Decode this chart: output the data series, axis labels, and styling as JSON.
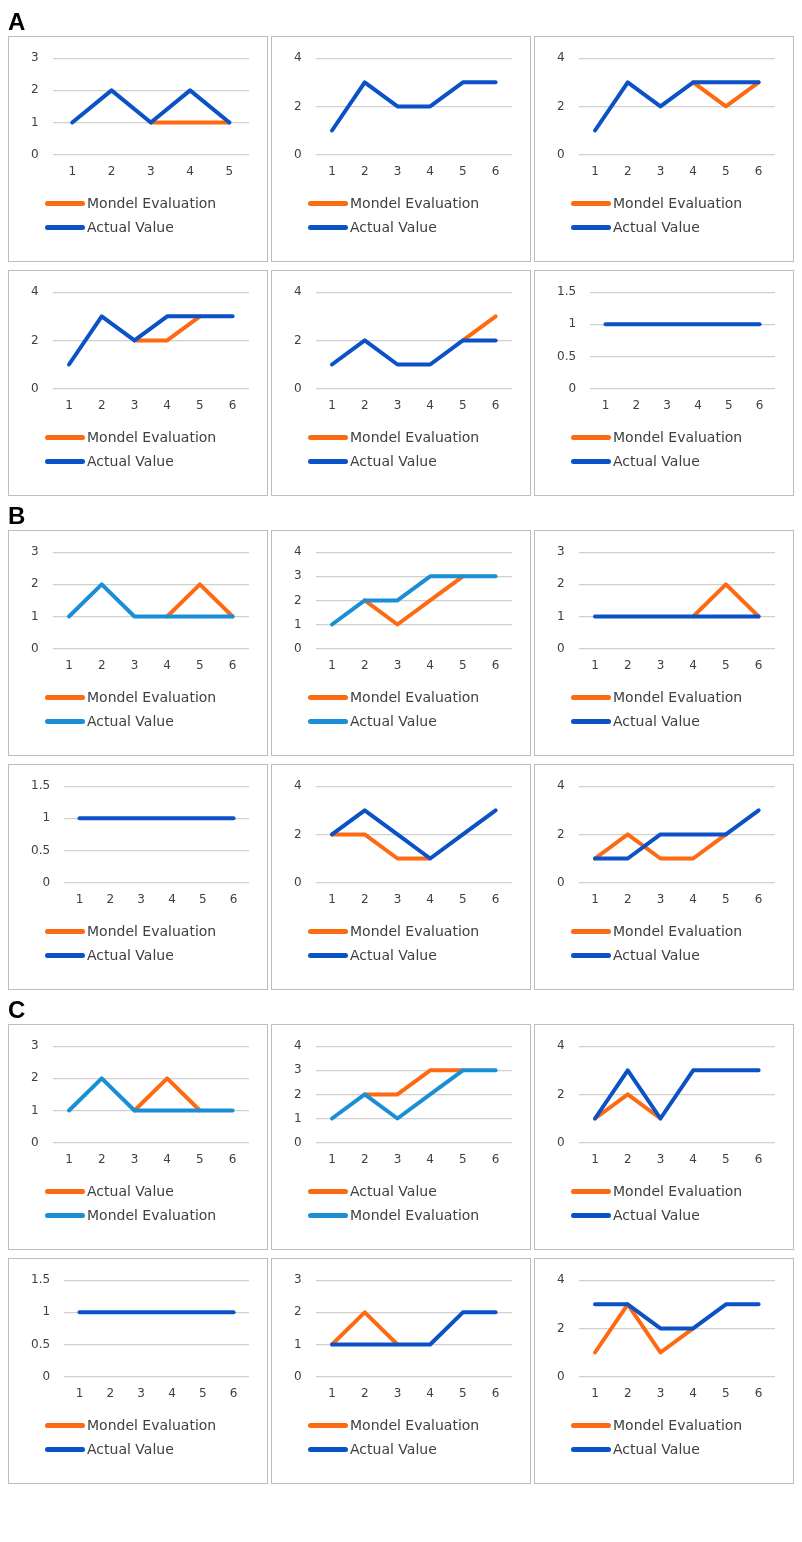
{
  "chart_data": [
    {
      "type": "line",
      "title": "A",
      "categories": [
        "1",
        "2",
        "3",
        "4",
        "5"
      ],
      "ylim": [
        0,
        3
      ],
      "yticks": [
        0,
        1,
        2,
        3
      ],
      "grid": "y",
      "legend": "bottom",
      "series": [
        {
          "name": "Mondel Evaluation",
          "color": "#fe6a12",
          "values": [
            null,
            null,
            1,
            1,
            1
          ]
        },
        {
          "name": "Actual Value",
          "color": "#0a52c6",
          "values": [
            1,
            2,
            1,
            2,
            1
          ]
        }
      ]
    },
    {
      "type": "line",
      "categories": [
        "1",
        "2",
        "3",
        "4",
        "5",
        "6"
      ],
      "ylim": [
        0,
        4
      ],
      "yticks": [
        0,
        2,
        4
      ],
      "grid": "y",
      "legend": "bottom",
      "series": [
        {
          "name": "Mondel Evaluation",
          "color": "#fe6a12",
          "values": [
            null,
            null,
            null,
            null,
            null,
            null
          ]
        },
        {
          "name": "Actual Value",
          "color": "#0a52c6",
          "values": [
            1,
            3,
            2,
            2,
            3,
            3
          ]
        }
      ]
    },
    {
      "type": "line",
      "categories": [
        "1",
        "2",
        "3",
        "4",
        "5",
        "6"
      ],
      "ylim": [
        0,
        4
      ],
      "yticks": [
        0,
        2,
        4
      ],
      "grid": "y",
      "legend": "bottom",
      "series": [
        {
          "name": "Mondel Evaluation",
          "color": "#fe6a12",
          "values": [
            null,
            null,
            null,
            3,
            2,
            3
          ]
        },
        {
          "name": "Actual Value",
          "color": "#0a52c6",
          "values": [
            1,
            3,
            2,
            3,
            3,
            3
          ]
        }
      ]
    },
    {
      "type": "line",
      "categories": [
        "1",
        "2",
        "3",
        "4",
        "5",
        "6"
      ],
      "ylim": [
        0,
        4
      ],
      "yticks": [
        0,
        2,
        4
      ],
      "grid": "y",
      "legend": "bottom",
      "series": [
        {
          "name": "Mondel Evaluation",
          "color": "#fe6a12",
          "values": [
            null,
            null,
            2,
            2,
            3,
            null
          ]
        },
        {
          "name": "Actual Value",
          "color": "#0a52c6",
          "values": [
            1,
            3,
            2,
            3,
            3,
            3
          ]
        }
      ]
    },
    {
      "type": "line",
      "categories": [
        "1",
        "2",
        "3",
        "4",
        "5",
        "6"
      ],
      "ylim": [
        0,
        4
      ],
      "yticks": [
        0,
        2,
        4
      ],
      "grid": "y",
      "legend": "bottom",
      "series": [
        {
          "name": "Mondel Evaluation",
          "color": "#fe6a12",
          "values": [
            null,
            null,
            null,
            null,
            2,
            3
          ]
        },
        {
          "name": "Actual Value",
          "color": "#0a52c6",
          "values": [
            1,
            2,
            1,
            1,
            2,
            2
          ]
        }
      ]
    },
    {
      "type": "line",
      "categories": [
        "1",
        "2",
        "3",
        "4",
        "5",
        "6"
      ],
      "ylim": [
        0,
        1.5
      ],
      "yticks": [
        0,
        0.5,
        1,
        1.5
      ],
      "grid": "y",
      "legend": "bottom",
      "series": [
        {
          "name": "Mondel Evaluation",
          "color": "#fe6a12",
          "values": [
            null,
            null,
            null,
            null,
            null,
            null
          ]
        },
        {
          "name": "Actual Value",
          "color": "#0a52c6",
          "values": [
            1,
            1,
            1,
            1,
            1,
            1
          ]
        }
      ]
    },
    {
      "type": "line",
      "title": "B",
      "categories": [
        "1",
        "2",
        "3",
        "4",
        "5",
        "6"
      ],
      "ylim": [
        0,
        3
      ],
      "yticks": [
        0,
        1,
        2,
        3
      ],
      "grid": "y",
      "legend": "bottom",
      "series": [
        {
          "name": "Mondel Evaluation",
          "color": "#fe6a12",
          "values": [
            null,
            null,
            null,
            1,
            2,
            1
          ]
        },
        {
          "name": "Actual Value",
          "color": "#1a8fd6",
          "values": [
            1,
            2,
            1,
            1,
            1,
            1
          ]
        }
      ]
    },
    {
      "type": "line",
      "categories": [
        "1",
        "2",
        "3",
        "4",
        "5",
        "6"
      ],
      "ylim": [
        0,
        4
      ],
      "yticks": [
        0,
        1,
        2,
        3,
        4
      ],
      "grid": "y",
      "legend": "bottom",
      "series": [
        {
          "name": "Mondel Evaluation",
          "color": "#fe6a12",
          "values": [
            null,
            2,
            1,
            2,
            3,
            null
          ]
        },
        {
          "name": "Actual Value",
          "color": "#1a8fd6",
          "values": [
            1,
            2,
            2,
            3,
            3,
            3
          ]
        }
      ]
    },
    {
      "type": "line",
      "categories": [
        "1",
        "2",
        "3",
        "4",
        "5",
        "6"
      ],
      "ylim": [
        0,
        3
      ],
      "yticks": [
        0,
        1,
        2,
        3
      ],
      "grid": "y",
      "legend": "bottom",
      "series": [
        {
          "name": "Mondel Evaluation",
          "color": "#fe6a12",
          "values": [
            null,
            null,
            null,
            1,
            2,
            1
          ]
        },
        {
          "name": "Actual Value",
          "color": "#0a52c6",
          "values": [
            1,
            1,
            1,
            1,
            1,
            1
          ]
        }
      ]
    },
    {
      "type": "line",
      "categories": [
        "1",
        "2",
        "3",
        "4",
        "5",
        "6"
      ],
      "ylim": [
        0,
        1.5
      ],
      "yticks": [
        0,
        0.5,
        1,
        1.5
      ],
      "grid": "y",
      "legend": "bottom",
      "series": [
        {
          "name": "Mondel Evaluation",
          "color": "#fe6a12",
          "values": [
            null,
            null,
            null,
            null,
            null,
            null
          ]
        },
        {
          "name": "Actual Value",
          "color": "#0a52c6",
          "values": [
            1,
            1,
            1,
            1,
            1,
            1
          ]
        }
      ]
    },
    {
      "type": "line",
      "categories": [
        "1",
        "2",
        "3",
        "4",
        "5",
        "6"
      ],
      "ylim": [
        0,
        4
      ],
      "yticks": [
        0,
        2,
        4
      ],
      "grid": "y",
      "legend": "bottom",
      "series": [
        {
          "name": "Mondel Evaluation",
          "color": "#fe6a12",
          "values": [
            2,
            2,
            1,
            1,
            null,
            null
          ]
        },
        {
          "name": "Actual Value",
          "color": "#0a52c6",
          "values": [
            2,
            3,
            2,
            1,
            2,
            3
          ]
        }
      ]
    },
    {
      "type": "line",
      "categories": [
        "1",
        "2",
        "3",
        "4",
        "5",
        "6"
      ],
      "ylim": [
        0,
        4
      ],
      "yticks": [
        0,
        2,
        4
      ],
      "grid": "y",
      "legend": "bottom",
      "series": [
        {
          "name": "Mondel Evaluation",
          "color": "#fe6a12",
          "values": [
            1,
            2,
            1,
            1,
            2,
            null
          ]
        },
        {
          "name": "Actual Value",
          "color": "#0a52c6",
          "values": [
            1,
            1,
            2,
            2,
            2,
            3
          ]
        }
      ]
    },
    {
      "type": "line",
      "title": "C",
      "categories": [
        "1",
        "2",
        "3",
        "4",
        "5",
        "6"
      ],
      "ylim": [
        0,
        3
      ],
      "yticks": [
        0,
        1,
        2,
        3
      ],
      "grid": "y",
      "legend": "bottom",
      "series": [
        {
          "name": "Actual Value",
          "color": "#fe6a12",
          "values": [
            null,
            null,
            1,
            2,
            1,
            null
          ]
        },
        {
          "name": "Mondel Evaluation",
          "color": "#1a8fd6",
          "values": [
            1,
            2,
            1,
            1,
            1,
            1
          ]
        }
      ]
    },
    {
      "type": "line",
      "categories": [
        "1",
        "2",
        "3",
        "4",
        "5",
        "6"
      ],
      "ylim": [
        0,
        4
      ],
      "yticks": [
        0,
        1,
        2,
        3,
        4
      ],
      "grid": "y",
      "legend": "bottom",
      "series": [
        {
          "name": "Actual Value",
          "color": "#fe6a12",
          "values": [
            null,
            2,
            2,
            3,
            3,
            null
          ]
        },
        {
          "name": "Mondel Evaluation",
          "color": "#1a8fd6",
          "values": [
            1,
            2,
            1,
            2,
            3,
            3
          ]
        }
      ]
    },
    {
      "type": "line",
      "categories": [
        "1",
        "2",
        "3",
        "4",
        "5",
        "6"
      ],
      "ylim": [
        0,
        4
      ],
      "yticks": [
        0,
        2,
        4
      ],
      "grid": "y",
      "legend": "bottom",
      "series": [
        {
          "name": "Mondel Evaluation",
          "color": "#fe6a12",
          "values": [
            1,
            2,
            1,
            null,
            null,
            null
          ]
        },
        {
          "name": "Actual Value",
          "color": "#0a52c6",
          "values": [
            1,
            3,
            1,
            3,
            3,
            3
          ]
        }
      ]
    },
    {
      "type": "line",
      "categories": [
        "1",
        "2",
        "3",
        "4",
        "5",
        "6"
      ],
      "ylim": [
        0,
        1.5
      ],
      "yticks": [
        0,
        0.5,
        1,
        1.5
      ],
      "grid": "y",
      "legend": "bottom",
      "series": [
        {
          "name": "Mondel Evaluation",
          "color": "#fe6a12",
          "values": [
            null,
            null,
            null,
            null,
            null,
            null
          ]
        },
        {
          "name": "Actual Value",
          "color": "#0a52c6",
          "values": [
            1,
            1,
            1,
            1,
            1,
            1
          ]
        }
      ]
    },
    {
      "type": "line",
      "categories": [
        "1",
        "2",
        "3",
        "4",
        "5",
        "6"
      ],
      "ylim": [
        0,
        3
      ],
      "yticks": [
        0,
        1,
        2,
        3
      ],
      "grid": "y",
      "legend": "bottom",
      "series": [
        {
          "name": "Mondel Evaluation",
          "color": "#fe6a12",
          "values": [
            1,
            2,
            1,
            null,
            null,
            null
          ]
        },
        {
          "name": "Actual Value",
          "color": "#0a52c6",
          "values": [
            1,
            1,
            1,
            1,
            2,
            2
          ]
        }
      ]
    },
    {
      "type": "line",
      "categories": [
        "1",
        "2",
        "3",
        "4",
        "5",
        "6"
      ],
      "ylim": [
        0,
        4
      ],
      "yticks": [
        0,
        2,
        4
      ],
      "grid": "y",
      "legend": "bottom",
      "series": [
        {
          "name": "Mondel Evaluation",
          "color": "#fe6a12",
          "values": [
            1,
            3,
            1,
            2,
            null,
            null
          ]
        },
        {
          "name": "Actual Value",
          "color": "#0a52c6",
          "values": [
            3,
            3,
            2,
            2,
            3,
            3
          ]
        }
      ]
    }
  ]
}
